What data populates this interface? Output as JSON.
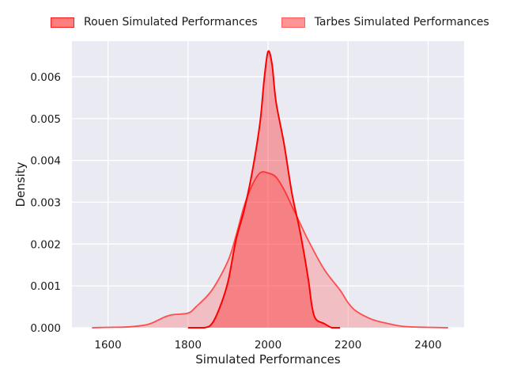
{
  "chart_data": {
    "type": "area",
    "title": "",
    "xlabel": "Simulated Performances",
    "ylabel": "Density",
    "xlim": [
      1510,
      2490
    ],
    "ylim": [
      0,
      0.00685
    ],
    "xticks": [
      "1600",
      "1800",
      "2000",
      "2200",
      "2400"
    ],
    "yticks": [
      "0.000",
      "0.001",
      "0.002",
      "0.003",
      "0.004",
      "0.005",
      "0.006"
    ],
    "grid": true,
    "legend_position": "top",
    "colors": {
      "background": "#eaeaf2",
      "rouen": "#ff0000",
      "tarbes": "#ff4d4d"
    },
    "series": [
      {
        "name": "Rouen Simulated Performances",
        "x": [
          1800,
          1840,
          1860,
          1880,
          1900,
          1920,
          1940,
          1960,
          1980,
          1990,
          2000,
          2010,
          2020,
          2040,
          2060,
          2080,
          2100,
          2110,
          2120,
          2140,
          2160,
          2180
        ],
        "y": [
          0,
          0,
          0.0001,
          0.0005,
          0.0011,
          0.0021,
          0.0028,
          0.0037,
          0.0049,
          0.0059,
          0.0066,
          0.0063,
          0.0054,
          0.0044,
          0.0032,
          0.0023,
          0.0012,
          0.0005,
          0.0002,
          0.0001,
          0,
          0
        ]
      },
      {
        "name": "Tarbes Simulated Performances",
        "x": [
          1560,
          1600,
          1650,
          1700,
          1740,
          1760,
          1800,
          1820,
          1860,
          1900,
          1920,
          1940,
          1960,
          1980,
          2000,
          2020,
          2040,
          2060,
          2080,
          2100,
          2140,
          2180,
          2200,
          2220,
          2260,
          2300,
          2340,
          2400,
          2450
        ],
        "y": [
          0,
          1e-05,
          2e-05,
          8e-05,
          0.00025,
          0.00031,
          0.00035,
          0.0005,
          0.0009,
          0.0016,
          0.0022,
          0.0029,
          0.0034,
          0.0037,
          0.0037,
          0.0036,
          0.0033,
          0.0029,
          0.0025,
          0.0021,
          0.0014,
          0.0009,
          0.0006,
          0.0004,
          0.0002,
          0.0001,
          3e-05,
          1e-05,
          0
        ]
      }
    ]
  }
}
